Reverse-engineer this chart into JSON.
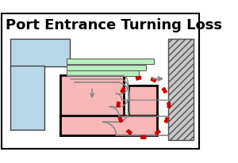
{
  "title": "Port Entrance Turning Loss",
  "title_fontsize": 13,
  "bg_color": "#ffffff",
  "border_color": "#000000",
  "light_blue": "#b8d8e8",
  "light_pink": "#f8b8b8",
  "light_green": "#b8f0c0",
  "dark_red_dot": "#cc0000",
  "arrow_gray": "#888888",
  "dark_gray": "#404040"
}
